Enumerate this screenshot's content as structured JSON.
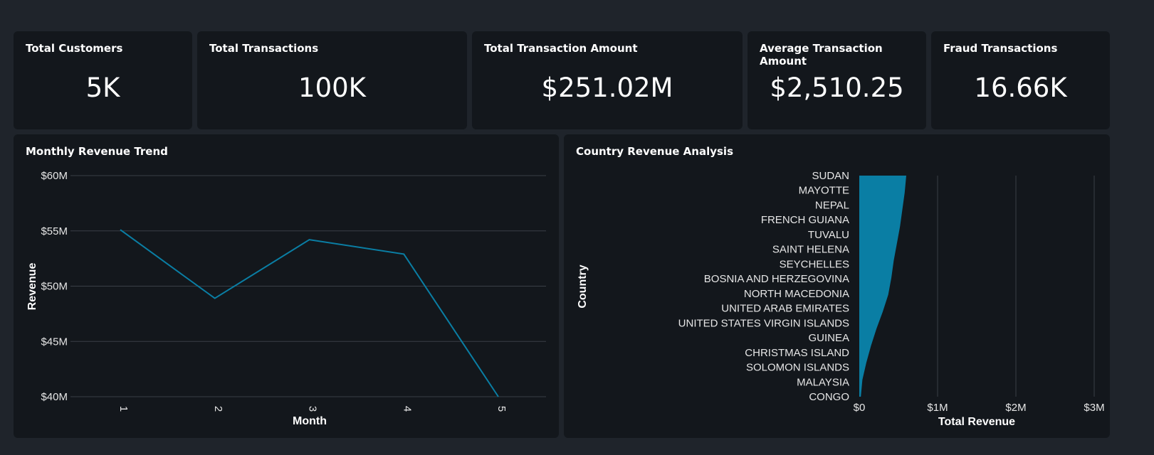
{
  "kpis": [
    {
      "title": "Total Customers",
      "value": "5K"
    },
    {
      "title": "Total Transactions",
      "value": "100K"
    },
    {
      "title": "Total Transaction Amount",
      "value": "$251.02M"
    },
    {
      "title": "Average Transaction Amount",
      "value": "$2,510.25"
    },
    {
      "title": "Fraud Transactions",
      "value": "16.66K"
    }
  ],
  "accent_color": "#0a7ea4",
  "chart_data": [
    {
      "type": "line",
      "title": "Monthly Revenue Trend",
      "xlabel": "Month",
      "ylabel": "Revenue",
      "x": [
        "1",
        "2",
        "3",
        "4",
        "5"
      ],
      "values": [
        55.1,
        48.9,
        54.2,
        52.9,
        40.0
      ],
      "unit": "$M",
      "ylim": [
        40,
        60
      ],
      "yticks": [
        60,
        55,
        50,
        45,
        40
      ],
      "ytick_labels": [
        "$60M",
        "$55M",
        "$50M",
        "$45M",
        "$40M"
      ],
      "grid": true
    },
    {
      "type": "bar",
      "orientation": "horizontal",
      "title": "Country Revenue Analysis",
      "xlabel": "Total Revenue",
      "ylabel": "Country",
      "categories": [
        "SUDAN",
        "MAYOTTE",
        "NEPAL",
        "FRENCH GUIANA",
        "TUVALU",
        "SAINT HELENA",
        "SEYCHELLES",
        "BOSNIA AND HERZEGOVINA",
        "NORTH MACEDONIA",
        "UNITED ARAB EMIRATES",
        "UNITED STATES VIRGIN ISLANDS",
        "GUINEA",
        "CHRISTMAS ISLAND",
        "SOLOMON ISLANDS",
        "MALAYSIA",
        "CONGO"
      ],
      "xlim": [
        0,
        3000000
      ],
      "xticks": [
        0,
        1000000,
        2000000,
        3000000
      ],
      "xtick_labels": [
        "$0",
        "$1M",
        "$2M",
        "$3M"
      ],
      "profile_max": [
        0.6,
        0.58,
        0.55,
        0.52,
        0.48,
        0.44,
        0.41,
        0.37,
        0.3,
        0.22,
        0.15,
        0.09,
        0.04,
        0.02
      ],
      "grid": true
    }
  ]
}
